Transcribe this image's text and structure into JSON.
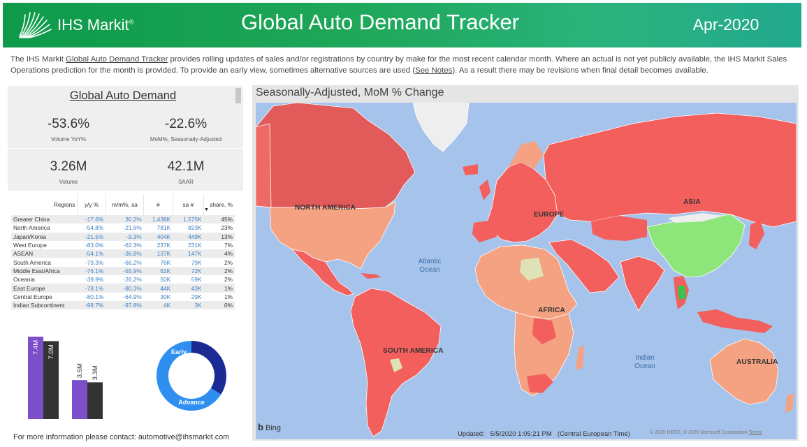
{
  "header": {
    "logo_text": "IHS Markit",
    "logo_symbol": "®",
    "title": "Global Auto Demand Tracker",
    "date": "Apr-2020"
  },
  "intro": {
    "part1": "The IHS Markit ",
    "link1": "Global Auto Demand Tracker",
    "part2": " provides rolling updates of sales and/or registrations by country by make for the most recent calendar month. Where an actual is not yet publicly available, the IHS Markit Sales Operations prediction for the month is provided. To provide an early view, sometimes alternative sources are used (",
    "link2": "See Notes",
    "part3": "). As a result there may be revisions when final detail becomes available."
  },
  "kpi": {
    "title": "Global Auto Demand",
    "items": [
      {
        "value": "-53.6%",
        "label": "Volume YoY%"
      },
      {
        "value": "-22.6%",
        "label": "MoM%, Seasonally-Adjusted"
      },
      {
        "value": "3.26M",
        "label": "Volume"
      },
      {
        "value": "42.1M",
        "label": "SAAR"
      }
    ]
  },
  "table": {
    "headers": [
      "Regions",
      "y/y %",
      "m/m%, sa",
      "#",
      "sa #",
      "share, %"
    ],
    "rows": [
      [
        "Greater China",
        "-17.6%",
        "30.2%",
        "1,438K",
        "1,575K",
        "45%"
      ],
      [
        "North America",
        "-54.8%",
        "-21.6%",
        "781K",
        "823K",
        "23%"
      ],
      [
        "Japan/Korea",
        "-21.5%",
        "-9.3%",
        "404K",
        "449K",
        "13%"
      ],
      [
        "West Europe",
        "-83.0%",
        "-62.3%",
        "237K",
        "231K",
        "7%"
      ],
      [
        "ASEAN",
        "-54.1%",
        "-36.8%",
        "137K",
        "147K",
        "4%"
      ],
      [
        "South America",
        "-79.3%",
        "-66.2%",
        "76K",
        "79K",
        "2%"
      ],
      [
        "Middle East/Africa",
        "-76.1%",
        "-55.9%",
        "62K",
        "72K",
        "2%"
      ],
      [
        "Oceania",
        "-39.9%",
        "-26.2%",
        "50K",
        "59K",
        "2%"
      ],
      [
        "East Europe",
        "-78.1%",
        "-80.3%",
        "44K",
        "43K",
        "1%"
      ],
      [
        "Central Europe",
        "-80.1%",
        "-64.9%",
        "30K",
        "29K",
        "1%"
      ],
      [
        "Indian Subcontinent",
        "-98.7%",
        "-97.8%",
        "4K",
        "3K",
        "0%"
      ]
    ]
  },
  "chart_data": [
    {
      "type": "bar",
      "title": "",
      "categories": [
        "",
        ""
      ],
      "series": [
        {
          "color": "#7b4fc9",
          "values": [
            7.4,
            3.5
          ]
        },
        {
          "color": "#333333",
          "values": [
            7.0,
            3.3
          ]
        }
      ],
      "data_labels": [
        [
          "7.4M",
          "3.5M"
        ],
        [
          "7.0M",
          "3.3M"
        ]
      ],
      "ylim": [
        0,
        7.4
      ]
    },
    {
      "type": "pie",
      "title": "",
      "labels": [
        "Early",
        "Advance"
      ],
      "values": [
        34,
        66
      ],
      "colors": [
        "#1a2c94",
        "#2f8ff0"
      ]
    }
  ],
  "map": {
    "title": "Seasonally-Adjusted, MoM % Change",
    "regions": [
      "NORTH AMERICA",
      "EUROPE",
      "ASIA",
      "AFRICA",
      "SOUTH AMERICA",
      "AUSTRALIA"
    ],
    "oceans": [
      "Atlantic Ocean",
      "Indian Ocean"
    ],
    "bing": "Bing",
    "updated_label": "Updated:",
    "updated_value": "5/5/2020 1:05:21 PM",
    "timezone": "(Central European Time)",
    "copyright": "© 2020 HERE, © 2020 Microsoft Corporation",
    "terms": "Terms",
    "colors": {
      "ocean": "#a6c3eb",
      "red": "#f25f5c",
      "salmon": "#f4a281",
      "green": "#8ee67a",
      "pale": "#dfe2b7",
      "light": "#eeeeee",
      "darkgreen": "#37c54c"
    }
  },
  "footer": {
    "contact": "For more information please contact: automotive@ihsmarkit.com"
  }
}
